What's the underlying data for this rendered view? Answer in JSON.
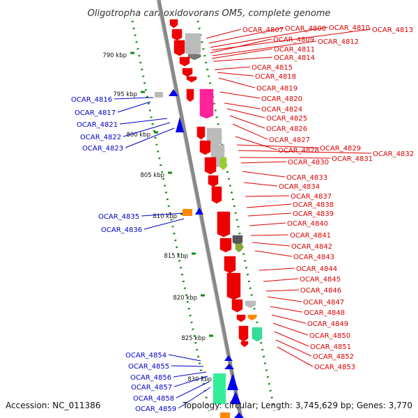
{
  "title": "Oligotropha carboxidovorans OM5, complete genome",
  "footer": {
    "accession": "Accession: NC_011386",
    "summary": "Topology: circular; Length: 3,745,629 bp; Genes: 3,770"
  },
  "colors": {
    "forward_label": "#dd0000",
    "reverse_label": "#0000cc",
    "forward_gene": "#ee0000",
    "reverse_gene": "#0000ee",
    "backbone": "#888888",
    "tick": "#118811"
  },
  "ruler": [
    {
      "label": "790 kbp",
      "kbp": 790
    },
    {
      "label": "795 kbp",
      "kbp": 795
    },
    {
      "label": "800 kbp",
      "kbp": 800
    },
    {
      "label": "805 kbp",
      "kbp": 805
    },
    {
      "label": "810 kbp",
      "kbp": 810
    },
    {
      "label": "815 kbp",
      "kbp": 815
    },
    {
      "label": "820 kbp",
      "kbp": 820
    },
    {
      "label": "825 kbp",
      "kbp": 825
    },
    {
      "label": "830 kbp",
      "kbp": 830
    }
  ],
  "forward_genes": [
    "OCAR_4807",
    "OCAR_4808",
    "OCAR_4810",
    "OCAR_4813",
    "OCAR_4809",
    "OCAR_4812",
    "OCAR_4811",
    "OCAR_4814",
    "OCAR_4815",
    "OCAR_4818",
    "OCAR_4819",
    "OCAR_4820",
    "OCAR_4824",
    "OCAR_4825",
    "OCAR_4826",
    "OCAR_4827",
    "OCAR_4828",
    "OCAR_4829",
    "OCAR_4832",
    "OCAR_4831",
    "OCAR_4830",
    "OCAR_4833",
    "OCAR_4834",
    "OCAR_4837",
    "OCAR_4838",
    "OCAR_4839",
    "OCAR_4840",
    "OCAR_4841",
    "OCAR_4842",
    "OCAR_4843",
    "OCAR_4844",
    "OCAR_4845",
    "OCAR_4846",
    "OCAR_4847",
    "OCAR_4848",
    "OCAR_4849",
    "OCAR_4850",
    "OCAR_4851",
    "OCAR_4852",
    "OCAR_4853"
  ],
  "reverse_genes": [
    "OCAR_4816",
    "OCAR_4817",
    "OCAR_4821",
    "OCAR_4822",
    "OCAR_4823",
    "OCAR_4835",
    "OCAR_4836",
    "OCAR_4854",
    "OCAR_4855",
    "OCAR_4856",
    "OCAR_4857",
    "OCAR_4858",
    "OCAR_4859"
  ]
}
